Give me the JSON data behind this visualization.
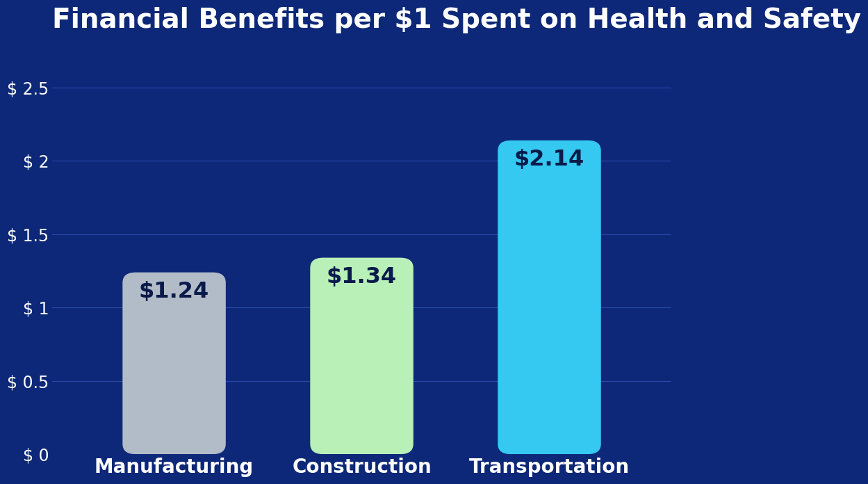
{
  "title": "Financial Benefits per $1 Spent on Health and Safety",
  "categories": [
    "Manufacturing",
    "Construction",
    "Transportation"
  ],
  "values": [
    1.24,
    1.34,
    2.14
  ],
  "bar_colors": [
    "#b2bcc8",
    "#b8f0b8",
    "#35c8f0"
  ],
  "bar_labels": [
    "$1.24",
    "$1.34",
    "$2.14"
  ],
  "label_color": "#0a1a4a",
  "background_color": "#0d2878",
  "text_color": "#ffffff",
  "tick_label_color": "#ffffff",
  "title_color": "#ffffff",
  "ylim": [
    0,
    2.75
  ],
  "yticks": [
    0,
    0.5,
    1.0,
    1.5,
    2.0,
    2.5
  ],
  "ytick_labels": [
    "$ 0",
    "$ 0.5",
    "$ 1",
    "$ 1.5",
    "$ 2",
    "$ 2.5"
  ],
  "grid_color": "#2a4aaa",
  "title_fontsize": 28,
  "tick_fontsize": 17,
  "bar_label_fontsize": 23,
  "xlabel_fontsize": 20,
  "bar_width": 0.55,
  "rounding_size": 0.07
}
